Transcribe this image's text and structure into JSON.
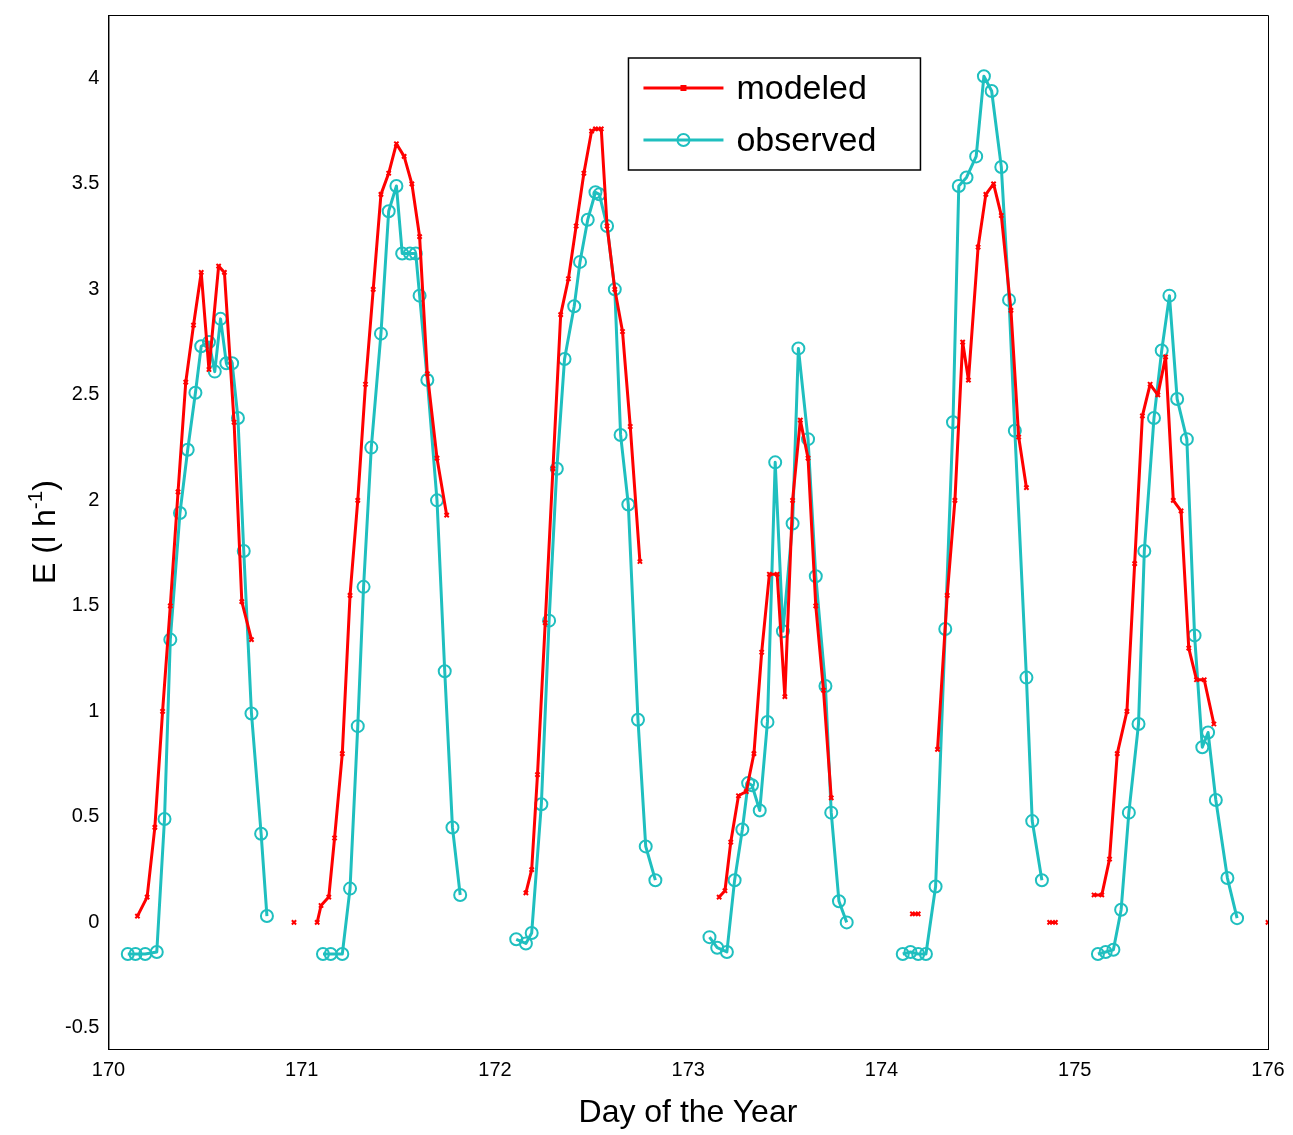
{
  "chart_data": {
    "type": "line",
    "xlabel": "Day of the Year",
    "ylabel": "E (l h$^{-1}$)",
    "xlim": [
      170,
      176
    ],
    "ylim": [
      -0.6,
      4.3
    ],
    "xticks": [
      170,
      171,
      172,
      173,
      174,
      175,
      176
    ],
    "yticks": [
      -0.5,
      0,
      0.5,
      1,
      1.5,
      2,
      2.5,
      3,
      3.5,
      4
    ],
    "grid": false,
    "legend": "top right",
    "line_style": "solid",
    "series": [
      {
        "name": "modeled",
        "color": "#ff0000",
        "marker": "cross",
        "x": [
          170.15,
          170.2,
          170.24,
          170.28,
          170.32,
          170.36,
          170.4,
          170.44,
          170.48,
          170.52,
          170.57,
          170.6,
          170.65,
          170.69,
          170.74,
          170.85,
          170.96,
          171.0,
          171.08,
          171.1,
          171.14,
          171.17,
          171.21,
          171.25,
          171.29,
          171.33,
          171.37,
          171.41,
          171.45,
          171.49,
          171.53,
          171.57,
          171.61,
          171.65,
          171.7,
          171.75,
          171.95,
          172.16,
          172.19,
          172.22,
          172.26,
          172.3,
          172.34,
          172.38,
          172.42,
          172.46,
          172.5,
          172.52,
          172.55,
          172.58,
          172.62,
          172.66,
          172.7,
          172.75,
          172.95,
          173.16,
          173.19,
          173.22,
          173.26,
          173.3,
          173.34,
          173.38,
          173.42,
          173.46,
          173.5,
          173.54,
          173.58,
          173.62,
          173.66,
          173.7,
          173.74,
          173.95,
          174.16,
          174.19,
          174.24,
          174.29,
          174.34,
          174.38,
          174.42,
          174.45,
          174.5,
          174.54,
          174.58,
          174.62,
          174.67,
          174.71,
          174.75,
          174.81,
          174.87,
          174.9,
          175.0,
          175.1,
          175.14,
          175.18,
          175.22,
          175.27,
          175.31,
          175.35,
          175.39,
          175.43,
          175.47,
          175.51,
          175.55,
          175.59,
          175.63,
          175.67,
          175.72,
          175.85,
          176.0
        ],
        "values": [
          0.03,
          0.12,
          0.45,
          1.0,
          1.5,
          2.04,
          2.56,
          2.83,
          3.08,
          2.62,
          3.11,
          3.08,
          2.37,
          1.52,
          1.34,
          null,
          0,
          null,
          0,
          0.08,
          0.12,
          0.4,
          0.8,
          1.55,
          2.0,
          2.55,
          3.0,
          3.45,
          3.55,
          3.69,
          3.63,
          3.5,
          3.25,
          2.6,
          2.2,
          1.93,
          null,
          0.14,
          0.25,
          0.7,
          1.42,
          2.15,
          2.88,
          3.05,
          3.3,
          3.55,
          3.75,
          3.76,
          3.76,
          3.3,
          3.0,
          2.8,
          2.35,
          1.71,
          null,
          0.12,
          0.15,
          0.38,
          0.6,
          0.62,
          0.8,
          1.28,
          1.65,
          1.65,
          1.07,
          2.0,
          2.38,
          2.2,
          1.5,
          1.1,
          0.59,
          null,
          0.04,
          0.04,
          null,
          0.82,
          1.55,
          2.0,
          2.75,
          2.57,
          3.2,
          3.45,
          3.5,
          3.35,
          2.9,
          2.3,
          2.06,
          null,
          0,
          0,
          null,
          0.13,
          0.13,
          0.3,
          0.8,
          1.0,
          1.7,
          2.4,
          2.55,
          2.5,
          2.68,
          2.0,
          1.95,
          1.3,
          1.15,
          1.15,
          0.94,
          null,
          0
        ]
      },
      {
        "name": "observed",
        "color": "#1fbfbf",
        "marker": "circle",
        "x": [
          170.1,
          170.14,
          170.19,
          170.25,
          170.29,
          170.32,
          170.37,
          170.41,
          170.45,
          170.48,
          170.52,
          170.55,
          170.58,
          170.61,
          170.64,
          170.67,
          170.7,
          170.74,
          170.79,
          170.82,
          171.0,
          171.11,
          171.15,
          171.21,
          171.25,
          171.29,
          171.32,
          171.36,
          171.41,
          171.45,
          171.49,
          171.52,
          171.56,
          171.59,
          171.61,
          171.65,
          171.7,
          171.74,
          171.78,
          171.82,
          172.0,
          172.11,
          172.16,
          172.19,
          172.24,
          172.28,
          172.32,
          172.36,
          172.41,
          172.44,
          172.48,
          172.52,
          172.54,
          172.58,
          172.62,
          172.65,
          172.69,
          172.74,
          172.78,
          172.83,
          173.0,
          173.11,
          173.15,
          173.2,
          173.24,
          173.28,
          173.31,
          173.33,
          173.37,
          173.41,
          173.45,
          173.49,
          173.54,
          173.57,
          173.62,
          173.66,
          173.71,
          173.74,
          173.78,
          173.82,
          174.0,
          174.11,
          174.15,
          174.19,
          174.23,
          174.28,
          174.33,
          174.37,
          174.4,
          174.44,
          174.49,
          174.53,
          174.57,
          174.62,
          174.66,
          174.69,
          174.75,
          174.78,
          174.83,
          175.0,
          175.12,
          175.16,
          175.2,
          175.24,
          175.28,
          175.33,
          175.36,
          175.41,
          175.45,
          175.49,
          175.53,
          175.58,
          175.62,
          175.66,
          175.69,
          175.73,
          175.79,
          175.84
        ],
        "values": [
          -0.15,
          -0.15,
          -0.15,
          -0.14,
          0.49,
          1.34,
          1.94,
          2.24,
          2.51,
          2.73,
          2.75,
          2.61,
          2.86,
          2.65,
          2.65,
          2.39,
          1.76,
          0.99,
          0.42,
          0.03,
          null,
          -0.15,
          -0.15,
          -0.15,
          0.16,
          0.93,
          1.59,
          2.25,
          2.79,
          3.37,
          3.49,
          3.17,
          3.17,
          3.17,
          2.97,
          2.57,
          2.0,
          1.19,
          0.45,
          0.13,
          null,
          -0.08,
          -0.1,
          -0.05,
          0.56,
          1.43,
          2.15,
          2.67,
          2.92,
          3.13,
          3.33,
          3.46,
          3.45,
          3.3,
          3.0,
          2.31,
          1.98,
          0.96,
          0.36,
          0.2,
          null,
          -0.07,
          -0.12,
          -0.14,
          0.2,
          0.44,
          0.66,
          0.65,
          0.53,
          0.95,
          2.18,
          1.38,
          1.89,
          2.72,
          2.29,
          1.64,
          1.12,
          0.52,
          0.1,
          0,
          null,
          -0.15,
          -0.14,
          -0.15,
          -0.15,
          0.17,
          1.39,
          2.37,
          3.49,
          3.53,
          3.63,
          4.01,
          3.94,
          3.58,
          2.95,
          2.33,
          1.16,
          0.48,
          0.2,
          null,
          -0.15,
          -0.14,
          -0.13,
          0.06,
          0.52,
          0.94,
          1.76,
          2.39,
          2.71,
          2.97,
          2.48,
          2.29,
          1.36,
          0.83,
          0.9,
          0.58,
          0.21,
          0.02
        ]
      }
    ]
  }
}
